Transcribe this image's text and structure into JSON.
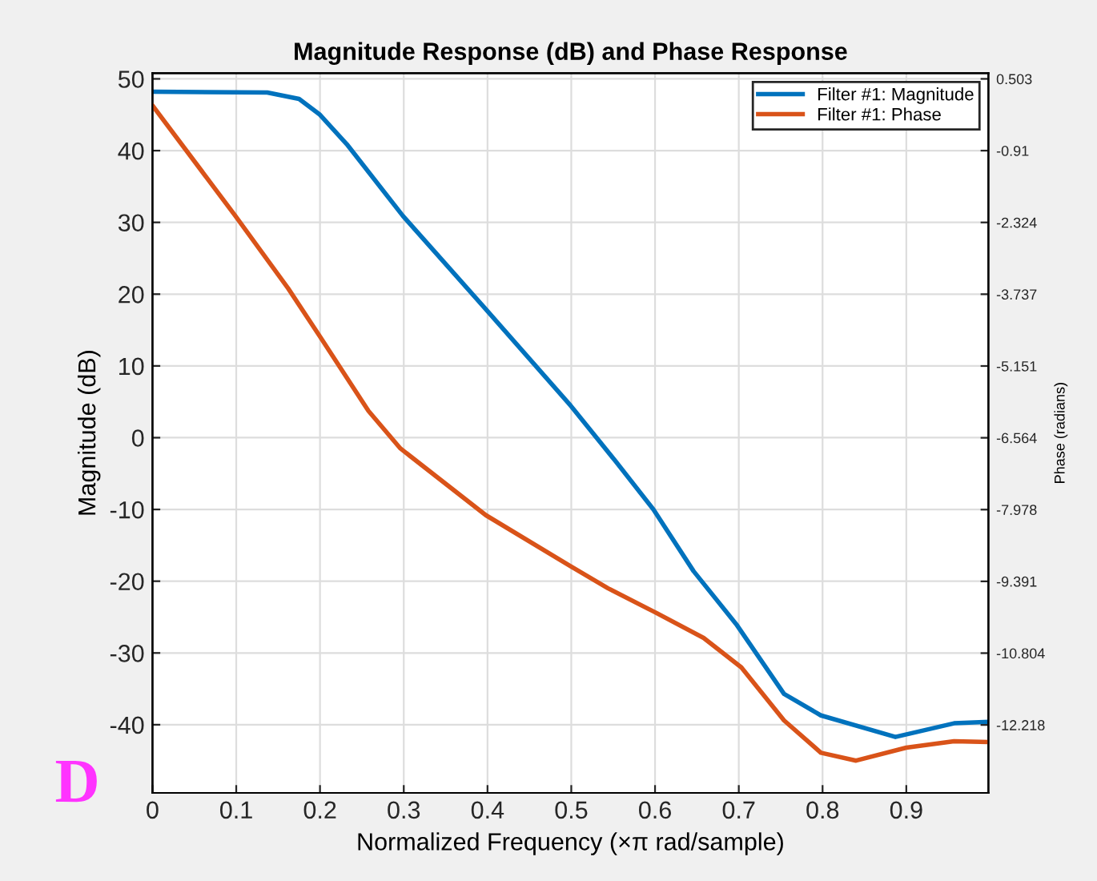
{
  "chart_data": {
    "type": "line",
    "title": "Magnitude Response (dB) and Phase Response",
    "xlabel": "Normalized Frequency (×π rad/sample)",
    "ylabel": "Magnitude (dB)",
    "y2label": "Phase (radians)",
    "xlim": [
      0,
      0.998
    ],
    "xticks": [
      0,
      0.1,
      0.2,
      0.3,
      0.4,
      0.5,
      0.6,
      0.7,
      0.8,
      0.9
    ],
    "ylim": [
      -49.5,
      50.8
    ],
    "yticks": [
      -40,
      -30,
      -20,
      -10,
      0,
      10,
      20,
      30,
      40,
      50
    ],
    "y2lim": [
      -13.556,
      0.616
    ],
    "y2ticks": [
      -12.218,
      -10.804,
      -9.391,
      -7.978,
      -6.564,
      -5.151,
      -3.737,
      -2.324,
      -0.91,
      0.503
    ],
    "grid": true,
    "legend": "top right",
    "line_style": "solid",
    "annotations": [
      "D"
    ],
    "series": [
      {
        "name": "Filter #1: Magnitude",
        "color": "#0072bd",
        "x": [
          0,
          0.137,
          0.175,
          0.2,
          0.232,
          0.299,
          0.398,
          0.499,
          0.553,
          0.598,
          0.646,
          0.697,
          0.754,
          0.798,
          0.887,
          0.957,
          0.997
        ],
        "values": [
          48.2,
          48.1,
          47.2,
          45.0,
          40.9,
          30.9,
          17.9,
          4.5,
          -3.3,
          -10.0,
          -18.6,
          -26.0,
          -35.7,
          -38.7,
          -41.7,
          -39.8,
          -39.6
        ]
      },
      {
        "name": "Filter #1: Phase",
        "color": "#d95319",
        "axis": "y2",
        "x": [
          0,
          0.099,
          0.162,
          0.2,
          0.258,
          0.296,
          0.398,
          0.499,
          0.544,
          0.598,
          0.658,
          0.703,
          0.754,
          0.798,
          0.84,
          0.9,
          0.957,
          0.997
        ],
        "values": [
          -0.02,
          -2.196,
          -3.623,
          -4.57,
          -6.039,
          -6.774,
          -8.088,
          -9.091,
          -9.529,
          -9.982,
          -10.504,
          -11.084,
          -12.129,
          -12.765,
          -12.92,
          -12.666,
          -12.539,
          -12.553
        ]
      }
    ]
  }
}
